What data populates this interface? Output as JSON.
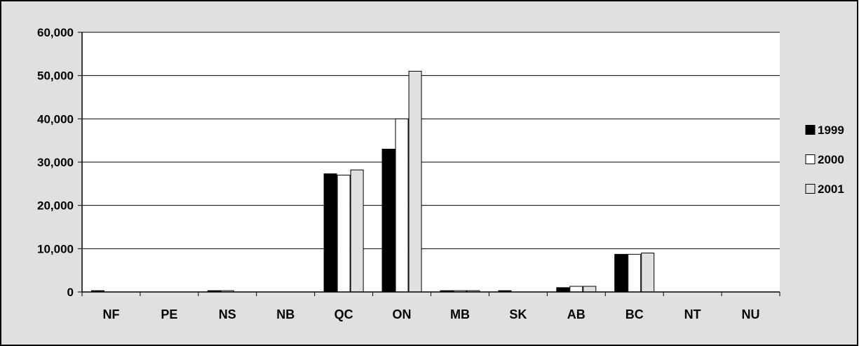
{
  "chart_data": {
    "type": "bar",
    "title": "",
    "xlabel": "",
    "ylabel": "",
    "categories": [
      "NF",
      "PE",
      "NS",
      "NB",
      "QC",
      "ON",
      "MB",
      "SK",
      "AB",
      "BC",
      "NT",
      "NU"
    ],
    "series": [
      {
        "name": "1999",
        "color": "#000000",
        "values": [
          300,
          0,
          300,
          0,
          27300,
          33000,
          300,
          300,
          1000,
          8700,
          0,
          0
        ]
      },
      {
        "name": "2000",
        "color": "#ffffff",
        "values": [
          0,
          0,
          300,
          0,
          27000,
          40000,
          300,
          0,
          1300,
          8700,
          0,
          0
        ]
      },
      {
        "name": "2001",
        "color": "#e0e0e0",
        "values": [
          0,
          0,
          0,
          0,
          28200,
          51000,
          300,
          0,
          1300,
          9000,
          0,
          0
        ]
      }
    ],
    "ylim": [
      0,
      60000
    ],
    "yticks": [
      0,
      10000,
      20000,
      30000,
      40000,
      50000,
      60000
    ],
    "ytick_labels": [
      "0",
      "10,000",
      "20,000",
      "30,000",
      "40,000",
      "50,000",
      "60,000"
    ],
    "grid": true,
    "legend_position": "right",
    "plot_background": "#ffffff",
    "chart_background": "#e0e0e0"
  }
}
